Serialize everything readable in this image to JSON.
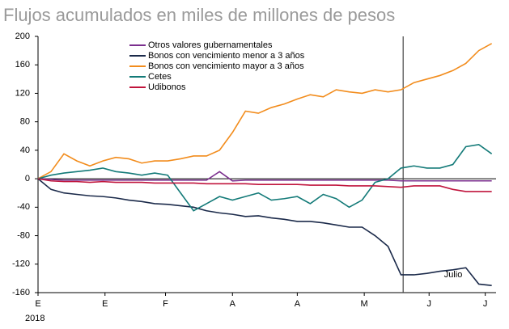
{
  "chart_data": {
    "type": "line",
    "title": "Flujos acumulados en miles de millones de pesos",
    "x": [
      0,
      6,
      12,
      18,
      24,
      30,
      36,
      42,
      48,
      54,
      60,
      66,
      72,
      78,
      84,
      90,
      96,
      102,
      108,
      114,
      120,
      126,
      132,
      138,
      144,
      150,
      156,
      162,
      168,
      174,
      180,
      186,
      192,
      198,
      204,
      210
    ],
    "xlim": [
      0,
      212
    ],
    "xticks": [
      {
        "value": 0,
        "label": "E"
      },
      {
        "value": 31,
        "label": "E"
      },
      {
        "value": 59,
        "label": "F"
      },
      {
        "value": 90,
        "label": "A"
      },
      {
        "value": 120,
        "label": "A"
      },
      {
        "value": 151,
        "label": "M"
      },
      {
        "value": 181,
        "label": "J"
      },
      {
        "value": 207,
        "label": "J"
      }
    ],
    "x_sublabel": "2018",
    "ylim": [
      -160,
      200
    ],
    "yticks": [
      200,
      160,
      120,
      80,
      40,
      0,
      -40,
      -80,
      -120,
      -160
    ],
    "vline": 169,
    "annotation": "Julio",
    "series": [
      {
        "name": "Otros valores gubernamentales",
        "color": "#7b2f8e",
        "values": [
          0,
          -1,
          -2,
          -2,
          -2,
          -2,
          -2,
          -2,
          -2,
          -2,
          -2,
          -2,
          -2,
          -2,
          10,
          -3,
          -2,
          -2,
          -2,
          -2,
          -2,
          -2,
          -2,
          -2,
          -2,
          -2,
          -2,
          -2,
          -3,
          -3,
          -3,
          -3,
          -3,
          -3,
          -3,
          -3
        ]
      },
      {
        "name": "Bonos con vencimiento menor a 3 años",
        "color": "#1b2a4a",
        "values": [
          0,
          -15,
          -20,
          -22,
          -24,
          -25,
          -27,
          -30,
          -32,
          -35,
          -36,
          -38,
          -40,
          -45,
          -48,
          -50,
          -53,
          -52,
          -55,
          -57,
          -60,
          -60,
          -62,
          -65,
          -68,
          -68,
          -80,
          -95,
          -135,
          -135,
          -133,
          -130,
          -128,
          -125,
          -148,
          -150
        ]
      },
      {
        "name": "Bonos con vencimiento mayor a 3 años",
        "color": "#f28c1c",
        "values": [
          0,
          10,
          35,
          25,
          18,
          25,
          30,
          28,
          22,
          25,
          25,
          28,
          32,
          32,
          40,
          65,
          95,
          92,
          100,
          105,
          112,
          118,
          115,
          125,
          122,
          120,
          125,
          122,
          125,
          135,
          140,
          145,
          152,
          162,
          180,
          190
        ]
      },
      {
        "name": "Cetes",
        "color": "#137a78",
        "values": [
          0,
          5,
          8,
          10,
          12,
          15,
          10,
          8,
          5,
          8,
          5,
          -20,
          -45,
          -35,
          -25,
          -30,
          -25,
          -20,
          -30,
          -28,
          -25,
          -35,
          -22,
          -28,
          -40,
          -30,
          -5,
          0,
          15,
          18,
          15,
          15,
          20,
          45,
          48,
          35
        ]
      },
      {
        "name": "Udibonos",
        "color": "#c0143c",
        "values": [
          0,
          -3,
          -4,
          -4,
          -5,
          -4,
          -5,
          -5,
          -5,
          -6,
          -6,
          -6,
          -6,
          -7,
          -7,
          -7,
          -7,
          -8,
          -8,
          -8,
          -8,
          -9,
          -9,
          -9,
          -10,
          -10,
          -10,
          -11,
          -12,
          -10,
          -10,
          -10,
          -15,
          -18,
          -18,
          -18
        ]
      }
    ]
  }
}
